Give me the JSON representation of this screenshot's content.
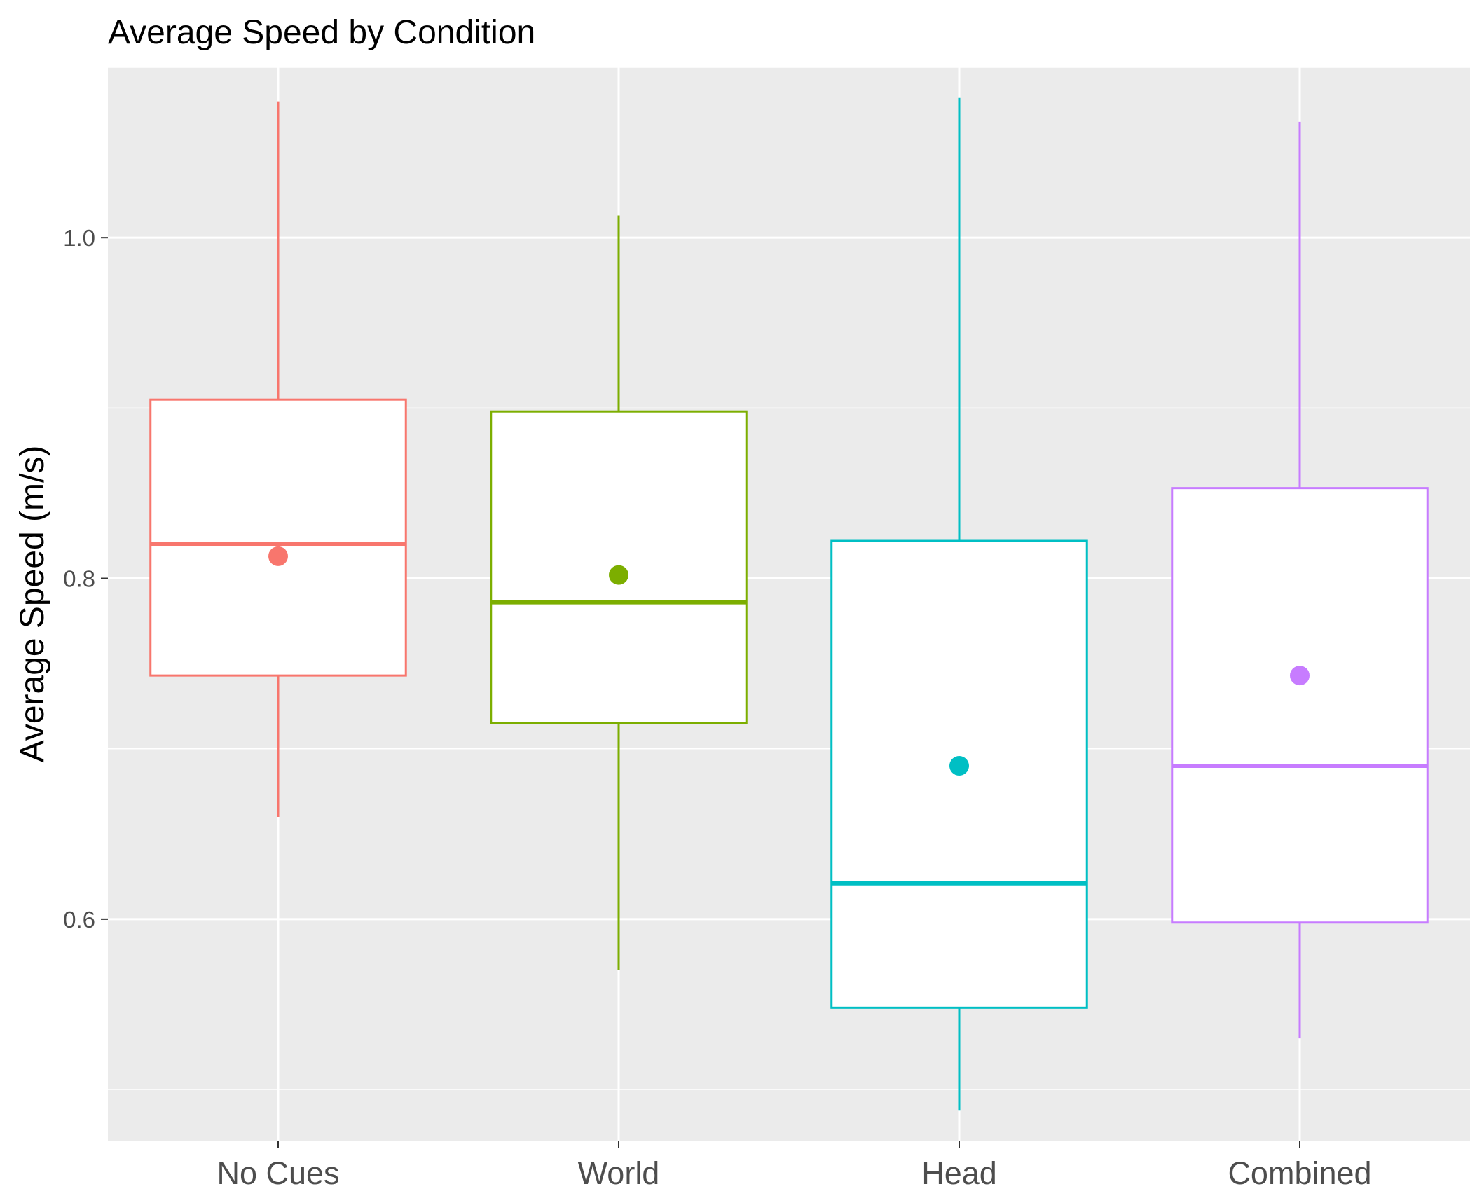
{
  "chart_data": {
    "type": "boxplot",
    "title": "Average Speed by Condition",
    "xlabel": "",
    "ylabel": "Average Speed (m/s)",
    "categories": [
      "No Cues",
      "World",
      "Head",
      "Combined"
    ],
    "ylim": [
      0.47,
      1.1
    ],
    "y_ticks": [
      0.6,
      0.8,
      1.0
    ],
    "y_tick_labels": [
      "0.6",
      "0.8",
      "1.0"
    ],
    "grid": true,
    "legend": "none",
    "background": "#ebebeb",
    "boxes": [
      {
        "category": "No Cues",
        "color": "#f8766d",
        "whisker_low": 0.66,
        "q1": 0.743,
        "median": 0.82,
        "q3": 0.905,
        "whisker_high": 1.08,
        "mean": 0.813
      },
      {
        "category": "World",
        "color": "#7cae00",
        "whisker_low": 0.57,
        "q1": 0.715,
        "median": 0.786,
        "q3": 0.898,
        "whisker_high": 1.013,
        "mean": 0.802
      },
      {
        "category": "Head",
        "color": "#00bfc4",
        "whisker_low": 0.488,
        "q1": 0.548,
        "median": 0.621,
        "q3": 0.822,
        "whisker_high": 1.082,
        "mean": 0.69
      },
      {
        "category": "Combined",
        "color": "#c77cff",
        "whisker_low": 0.53,
        "q1": 0.598,
        "median": 0.69,
        "q3": 0.853,
        "whisker_high": 1.068,
        "mean": 0.743
      }
    ]
  }
}
